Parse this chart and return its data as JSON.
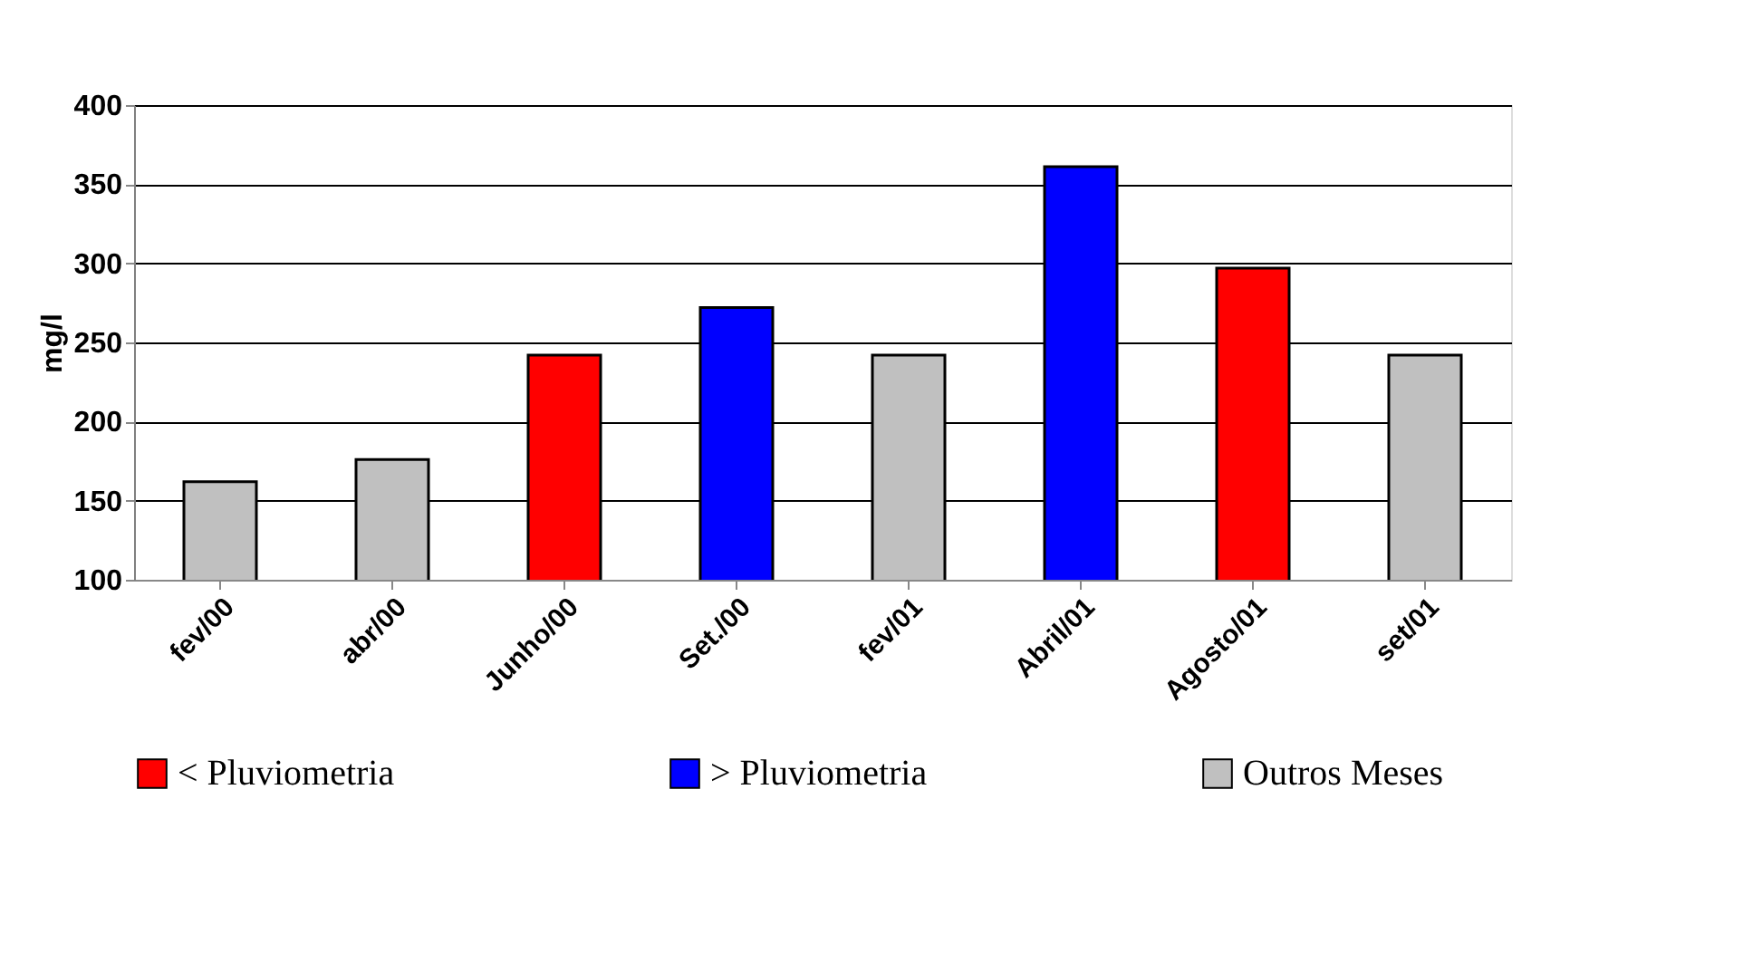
{
  "chart_data": {
    "type": "bar",
    "ylabel": "mg/l",
    "categories": [
      "fev/00",
      "abr/00",
      "Junho/00",
      "Set./00",
      "fev/01",
      "Abril/01",
      "Agosto/01",
      "set/01"
    ],
    "series": [
      {
        "name": "< Pluviometria",
        "color": "#ff0000",
        "values": [
          null,
          null,
          242,
          null,
          null,
          null,
          297,
          null
        ]
      },
      {
        "name": "> Pluviometria",
        "color": "#0000ff",
        "values": [
          null,
          null,
          null,
          272,
          null,
          361,
          null,
          null
        ]
      },
      {
        "name": "Outros Meses",
        "color": "#c0c0c0",
        "values": [
          162,
          176,
          null,
          null,
          242,
          null,
          null,
          242
        ]
      }
    ],
    "ylim": [
      100,
      400
    ],
    "yticks": [
      100,
      150,
      200,
      250,
      300,
      350,
      400
    ],
    "grid": "y",
    "legend": "bottom"
  }
}
